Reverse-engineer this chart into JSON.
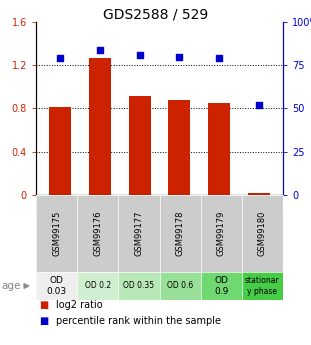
{
  "title": "GDS2588 / 529",
  "samples": [
    "GSM99175",
    "GSM99176",
    "GSM99177",
    "GSM99178",
    "GSM99179",
    "GSM99180"
  ],
  "log2_ratio": [
    0.81,
    1.27,
    0.92,
    0.88,
    0.85,
    0.02
  ],
  "percentile_rank": [
    79,
    84,
    81,
    80,
    79,
    52
  ],
  "bar_color": "#cc2200",
  "dot_color": "#0000cc",
  "ylim_left": [
    0,
    1.6
  ],
  "ylim_right": [
    0,
    100
  ],
  "yticks_left": [
    0,
    0.4,
    0.8,
    1.2,
    1.6
  ],
  "ytick_labels_left": [
    "0",
    "0.4",
    "0.8",
    "1.2",
    "1.6"
  ],
  "yticks_right": [
    0,
    25,
    50,
    75,
    100
  ],
  "ytick_labels_right": [
    "0",
    "25",
    "50",
    "75",
    "100%"
  ],
  "dotted_lines": [
    0.4,
    0.8,
    1.2
  ],
  "age_labels": [
    "OD\n0.03",
    "OD 0.2",
    "OD 0.35",
    "OD 0.6",
    "OD\n0.9",
    "stationar\ny phase"
  ],
  "age_bg_colors": [
    "#eeeeee",
    "#d0efd0",
    "#b8e8b8",
    "#98e098",
    "#70d870",
    "#46cc46"
  ],
  "gsm_bg_color": "#cccccc",
  "legend_log2": "log2 ratio",
  "legend_pct": "percentile rank within the sample"
}
